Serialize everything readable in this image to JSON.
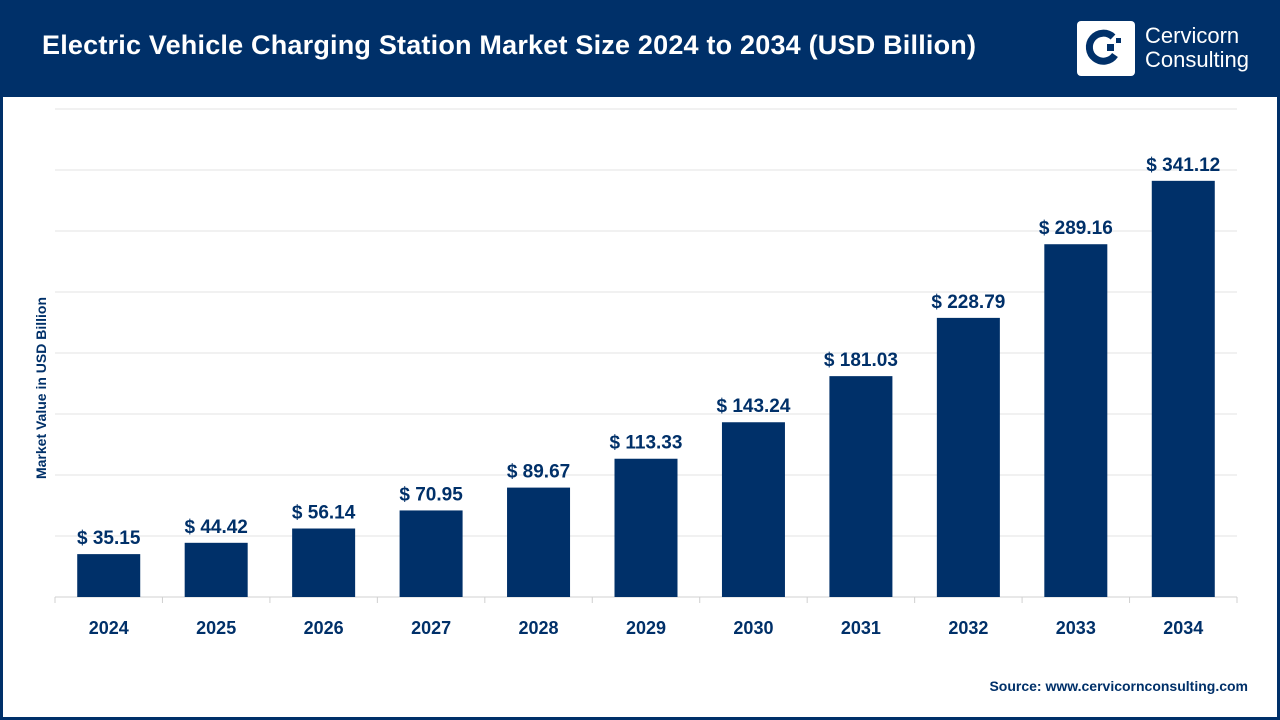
{
  "header": {
    "title": "Electric Vehicle Charging Station Market Size 2024 to 2034 (USD Billion)",
    "logo_line1": "Cervicorn",
    "logo_line2": "Consulting"
  },
  "source": "Source: www.cervicornconsulting.com",
  "chart_data": {
    "type": "bar",
    "title": "Electric Vehicle Charging Station Market Size 2024 to 2034 (USD Billion)",
    "xlabel": "",
    "ylabel": "Market Value in USD Billion",
    "categories": [
      "2024",
      "2025",
      "2026",
      "2027",
      "2028",
      "2029",
      "2030",
      "2031",
      "2032",
      "2033",
      "2034"
    ],
    "values": [
      35.15,
      44.42,
      56.14,
      70.95,
      89.67,
      113.33,
      143.24,
      181.03,
      228.79,
      289.16,
      341.12
    ],
    "data_labels": [
      "$ 35.15",
      "$ 44.42",
      "$ 56.14",
      "$ 70.95",
      "$ 89.67",
      "$ 113.33",
      "$ 143.24",
      "$ 181.03",
      "$ 228.79",
      "$ 289.16",
      "$ 341.12"
    ],
    "ylim": [
      0,
      400
    ],
    "grid": true,
    "y_tick_labels_shown": false,
    "bar_color": "#003069",
    "header_color": "#003069"
  }
}
